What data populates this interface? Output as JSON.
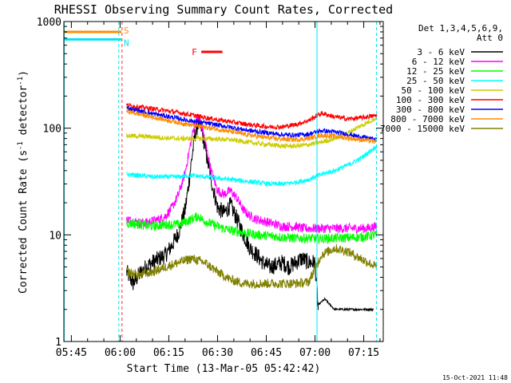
{
  "chart_data": {
    "type": "line",
    "title": "RHESSI Observing Summary Count Rates, Corrected",
    "xlabel": "Start Time (13-Mar-05 05:42:42)",
    "ylabel": "Corrected Count Rate (s^-1 detector^-1)",
    "ylabel_main": "Corrected Count Rate (s",
    "ylabel_sup1": "-1",
    "ylabel_mid": " detector",
    "ylabel_sup2": "-1",
    "ylabel_end": ")",
    "y_scale": "log",
    "ylim": [
      1,
      1000
    ],
    "xlim_minutes": [
      342.7,
      441.0
    ],
    "x_ticks": [
      {
        "label": "05:45",
        "minutes": 345
      },
      {
        "label": "06:00",
        "minutes": 360
      },
      {
        "label": "06:15",
        "minutes": 375
      },
      {
        "label": "06:30",
        "minutes": 390
      },
      {
        "label": "06:45",
        "minutes": 405
      },
      {
        "label": "07:00",
        "minutes": 420
      },
      {
        "label": "07:15",
        "minutes": 435
      }
    ],
    "y_ticks": [
      {
        "label": "1",
        "value": 1
      },
      {
        "label": "10",
        "value": 10
      },
      {
        "label": "100",
        "value": 100
      },
      {
        "label": "1000",
        "value": 1000
      }
    ],
    "legend": {
      "placement": "right",
      "header1": "Det 1,3,4,5,6,9,",
      "header2": "Att 0"
    },
    "flags": [
      {
        "label": "S",
        "color": "#ff8c00",
        "start": 342.7,
        "end": 360.4,
        "level": 800
      },
      {
        "label": "N",
        "color": "#00e5ee",
        "start": 342.7,
        "end": 360.4,
        "level": 680
      },
      {
        "label": "F",
        "color": "#ff0000",
        "start": 385.0,
        "end": 391.5,
        "level": 520
      }
    ],
    "eclipse_lines": [
      {
        "minutes": 342.8,
        "style": "solid"
      },
      {
        "minutes": 359.6,
        "style": "dashed"
      },
      {
        "minutes": 420.6,
        "style": "solid"
      },
      {
        "minutes": 438.9,
        "style": "dashed"
      }
    ],
    "saa_lines": [
      {
        "minutes": 360.6,
        "style": "dashed"
      }
    ],
    "series": [
      {
        "name": "3 - 6 keV",
        "color": "#000000",
        "x": [
          362,
          364,
          366,
          368,
          370,
          372,
          374,
          376,
          378,
          380,
          381,
          382,
          383,
          384,
          385,
          386,
          388,
          390,
          392,
          394,
          396,
          398,
          400,
          402,
          404,
          406,
          408,
          410,
          412,
          414,
          416,
          418,
          420,
          421
        ],
        "y": [
          4.5,
          3.5,
          4.3,
          5.0,
          5.5,
          6.0,
          6.5,
          8.0,
          10.5,
          17,
          28,
          50,
          85,
          110,
          100,
          70,
          33,
          18,
          16,
          19,
          14,
          10,
          7.5,
          6.5,
          5.5,
          5.0,
          5.2,
          5.5,
          5.0,
          5.5,
          6.0,
          5.5,
          5.5,
          2.0
        ],
        "x2": [
          421,
          423,
          426,
          429,
          432,
          435,
          438
        ],
        "y2": [
          2.2,
          2.5,
          2.0,
          2.0,
          2.0,
          2.0,
          2.0
        ]
      },
      {
        "name": "6 - 12 keV",
        "color": "#ff00ff",
        "x": [
          362,
          364,
          366,
          368,
          370,
          372,
          374,
          376,
          378,
          380,
          381,
          382,
          383,
          384,
          385,
          386,
          388,
          390,
          392,
          394,
          396,
          398,
          400,
          402,
          404,
          406,
          408,
          410,
          412,
          414,
          416,
          418,
          420,
          424,
          428,
          432,
          436,
          439
        ],
        "y": [
          14,
          13.5,
          13,
          13,
          13.5,
          14,
          15,
          18,
          24,
          38,
          55,
          80,
          110,
          125,
          110,
          80,
          40,
          26,
          24,
          26,
          22,
          17,
          15,
          14,
          13.5,
          13,
          12.5,
          12,
          12,
          12,
          11.5,
          11.5,
          11.5,
          11.5,
          11.5,
          11.5,
          11.5,
          12
        ]
      },
      {
        "name": "12 - 25 keV",
        "color": "#00ff00",
        "x": [
          362,
          366,
          370,
          374,
          378,
          382,
          384,
          386,
          390,
          394,
          398,
          402,
          406,
          410,
          414,
          418,
          422,
          426,
          430,
          434,
          439
        ],
        "y": [
          13,
          12.5,
          12,
          12.5,
          12.5,
          14,
          15,
          13.5,
          12,
          11,
          10.5,
          10,
          9.8,
          9.5,
          9.3,
          9.3,
          9.2,
          9.3,
          9.4,
          9.5,
          10
        ]
      },
      {
        "name": "25 - 50 keV",
        "color": "#00ffff",
        "x": [
          362,
          366,
          370,
          374,
          378,
          382,
          386,
          390,
          394,
          398,
          402,
          406,
          410,
          414,
          418,
          422,
          426,
          430,
          434,
          439
        ],
        "y": [
          37,
          36,
          35,
          35,
          35,
          36,
          35,
          34,
          33,
          32,
          31,
          30,
          30,
          31,
          33,
          37,
          40,
          45,
          52,
          68
        ]
      },
      {
        "name": "50 - 100 keV",
        "color": "#cccc00",
        "x": [
          362,
          366,
          370,
          374,
          378,
          382,
          386,
          390,
          394,
          398,
          402,
          406,
          410,
          414,
          418,
          422,
          426,
          430,
          434,
          439
        ],
        "y": [
          85,
          84,
          83,
          81,
          80,
          80,
          80,
          79,
          78,
          75,
          72,
          70,
          68,
          68,
          70,
          74,
          80,
          90,
          105,
          125
        ]
      },
      {
        "name": "100 - 300 keV",
        "color": "#ff0000",
        "x": [
          362,
          366,
          370,
          374,
          378,
          382,
          386,
          390,
          394,
          398,
          402,
          406,
          410,
          414,
          418,
          422,
          426,
          430,
          434,
          439
        ],
        "y": [
          165,
          158,
          152,
          146,
          140,
          133,
          126,
          120,
          115,
          110,
          106,
          103,
          103,
          108,
          118,
          138,
          128,
          122,
          125,
          132
        ]
      },
      {
        "name": "300 - 800 keV",
        "color": "#0000ff",
        "x": [
          362,
          366,
          370,
          374,
          378,
          382,
          386,
          390,
          394,
          398,
          402,
          406,
          410,
          414,
          418,
          422,
          426,
          430,
          434,
          439
        ],
        "y": [
          155,
          145,
          137,
          130,
          123,
          117,
          112,
          107,
          102,
          97,
          93,
          90,
          87,
          86,
          88,
          95,
          92,
          88,
          83,
          78
        ]
      },
      {
        "name": "800 - 7000 keV",
        "color": "#ff8c00",
        "x": [
          362,
          366,
          370,
          374,
          378,
          382,
          386,
          390,
          394,
          398,
          402,
          406,
          410,
          414,
          418,
          422,
          426,
          430,
          434,
          439
        ],
        "y": [
          145,
          135,
          127,
          120,
          113,
          107,
          102,
          98,
          93,
          88,
          84,
          81,
          79,
          78,
          80,
          86,
          84,
          81,
          78,
          75
        ]
      },
      {
        "name": "7000 - 15000 keV",
        "color": "#808000",
        "x": [
          362,
          366,
          370,
          374,
          378,
          382,
          386,
          390,
          394,
          398,
          402,
          406,
          410,
          414,
          418,
          422,
          426,
          430,
          434,
          439
        ],
        "y": [
          4.5,
          4.2,
          4.5,
          5.0,
          5.5,
          6.0,
          5.5,
          4.5,
          3.8,
          3.5,
          3.5,
          3.5,
          3.5,
          3.5,
          3.6,
          6.5,
          7.5,
          7.0,
          6.0,
          5.0
        ]
      }
    ]
  },
  "footer": {
    "timestamp": "15-Oct-2021 11:48"
  }
}
